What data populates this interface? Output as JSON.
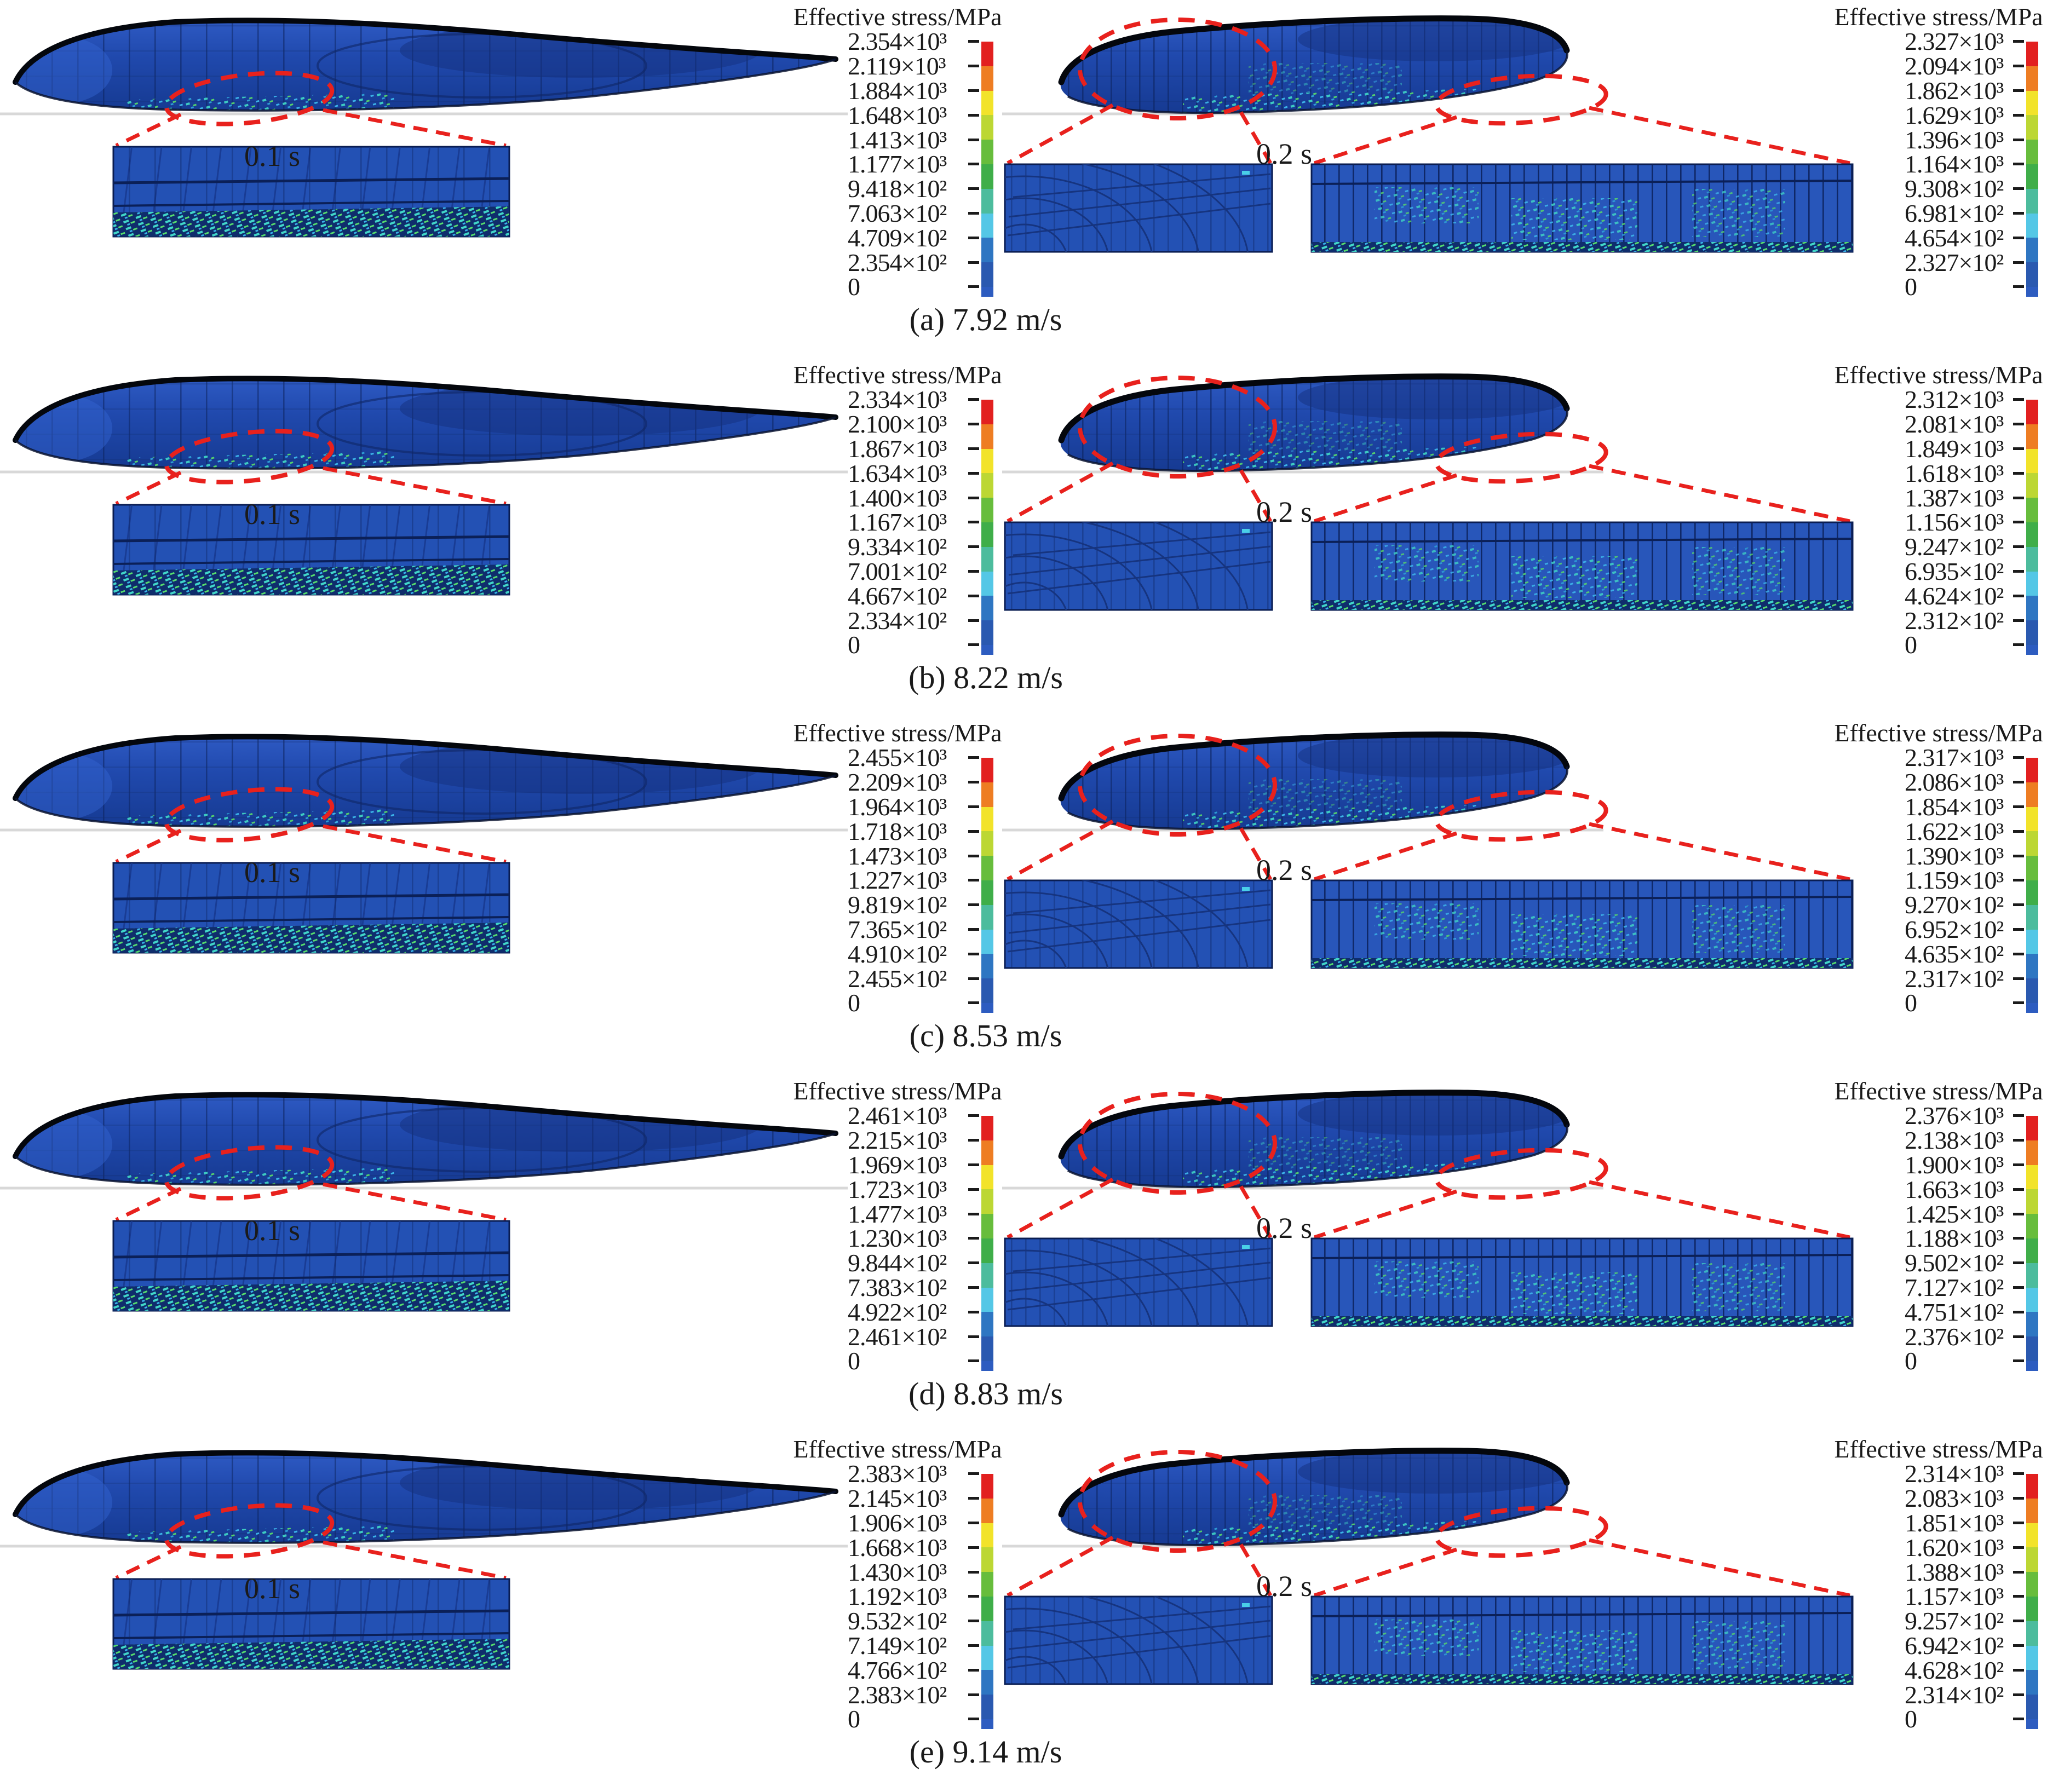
{
  "figure": {
    "colorbar_title": "Effective stress/MPa",
    "rows": [
      {
        "caption": "(a) 7.92 m/s",
        "left": {
          "time": "0.1 s",
          "ticks": [
            "2.354×10³",
            "2.119×10³",
            "1.884×10³",
            "1.648×10³",
            "1.413×10³",
            "1.177×10³",
            "9.418×10²",
            "7.063×10²",
            "4.709×10²",
            "2.354×10²",
            "0"
          ]
        },
        "right": {
          "time": "0.2 s",
          "ticks": [
            "2.327×10³",
            "2.094×10³",
            "1.862×10³",
            "1.629×10³",
            "1.396×10³",
            "1.164×10³",
            "9.308×10²",
            "6.981×10²",
            "4.654×10²",
            "2.327×10²",
            "0"
          ]
        }
      },
      {
        "caption": "(b) 8.22 m/s",
        "left": {
          "time": "0.1 s",
          "ticks": [
            "2.334×10³",
            "2.100×10³",
            "1.867×10³",
            "1.634×10³",
            "1.400×10³",
            "1.167×10³",
            "9.334×10²",
            "7.001×10²",
            "4.667×10²",
            "2.334×10²",
            "0"
          ]
        },
        "right": {
          "time": "0.2 s",
          "ticks": [
            "2.312×10³",
            "2.081×10³",
            "1.849×10³",
            "1.618×10³",
            "1.387×10³",
            "1.156×10³",
            "9.247×10²",
            "6.935×10²",
            "4.624×10²",
            "2.312×10²",
            "0"
          ]
        }
      },
      {
        "caption": "(c) 8.53 m/s",
        "left": {
          "time": "0.1 s",
          "ticks": [
            "2.455×10³",
            "2.209×10³",
            "1.964×10³",
            "1.718×10³",
            "1.473×10³",
            "1.227×10³",
            "9.819×10²",
            "7.365×10²",
            "4.910×10²",
            "2.455×10²",
            "0"
          ]
        },
        "right": {
          "time": "0.2 s",
          "ticks": [
            "2.317×10³",
            "2.086×10³",
            "1.854×10³",
            "1.622×10³",
            "1.390×10³",
            "1.159×10³",
            "9.270×10²",
            "6.952×10²",
            "4.635×10²",
            "2.317×10²",
            "0"
          ]
        }
      },
      {
        "caption": "(d) 8.83 m/s",
        "left": {
          "time": "0.1 s",
          "ticks": [
            "2.461×10³",
            "2.215×10³",
            "1.969×10³",
            "1.723×10³",
            "1.477×10³",
            "1.230×10³",
            "9.844×10²",
            "7.383×10²",
            "4.922×10²",
            "2.461×10²",
            "0"
          ]
        },
        "right": {
          "time": "0.2 s",
          "ticks": [
            "2.376×10³",
            "2.138×10³",
            "1.900×10³",
            "1.663×10³",
            "1.425×10³",
            "1.188×10³",
            "9.502×10²",
            "7.127×10²",
            "4.751×10²",
            "2.376×10²",
            "0"
          ]
        }
      },
      {
        "caption": "(e) 9.14 m/s",
        "left": {
          "time": "0.1 s",
          "ticks": [
            "2.383×10³",
            "2.145×10³",
            "1.906×10³",
            "1.668×10³",
            "1.430×10³",
            "1.192×10³",
            "9.532×10²",
            "7.149×10²",
            "4.766×10²",
            "2.383×10²",
            "0"
          ]
        },
        "right": {
          "time": "0.2 s",
          "ticks": [
            "2.314×10³",
            "2.083×10³",
            "1.851×10³",
            "1.620×10³",
            "1.388×10³",
            "1.157×10³",
            "9.257×10²",
            "6.942×10²",
            "4.628×10²",
            "2.314×10²",
            "0"
          ]
        }
      }
    ],
    "palette": [
      "#e2201f",
      "#ee7d22",
      "#f2e32a",
      "#bcd733",
      "#67bd3c",
      "#3fae49",
      "#4cbc9d",
      "#54c7e6",
      "#2e76c2",
      "#2a59b0"
    ],
    "colors": {
      "bar_stub": "#2d5cc0",
      "hull_blue": "#2049ad",
      "highlight_red": "#e8211d",
      "waterline_gray": "#d8d8d8"
    }
  }
}
